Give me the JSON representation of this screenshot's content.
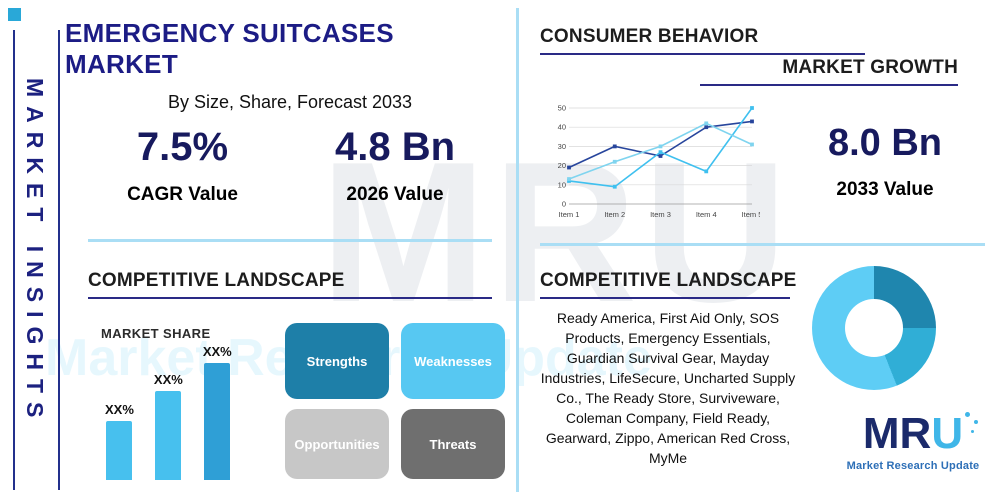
{
  "colors": {
    "navy": "#1c1c85",
    "stat_navy": "#171a5e",
    "teal_accent": "#29a8d8",
    "light_blue": "#57c8f2",
    "divider_blue": "#aadef5",
    "underline_navy": "#2a2a86"
  },
  "left_rail": {
    "vertical_label": "MARKET INSIGHTS"
  },
  "header": {
    "title": "EMERGENCY SUITCASES MARKET",
    "subtitle": "By Size, Share, Forecast 2033"
  },
  "stats": {
    "cagr": {
      "value": "7.5%",
      "label": "CAGR Value"
    },
    "value_2026": {
      "value": "4.8 Bn",
      "label": "2026 Value"
    },
    "value_2033": {
      "value": "8.0 Bn",
      "label": "2033 Value"
    }
  },
  "section_titles": {
    "competitive_left": "COMPETITIVE LANDSCAPE",
    "consumer_behavior": "CONSUMER BEHAVIOR",
    "market_growth": "MARKET GROWTH",
    "competitive_right": "COMPETITIVE LANDSCAPE"
  },
  "swot": {
    "strengths": "Strengths",
    "weaknesses": "Weaknesses",
    "opportunities": "Opportunities",
    "threats": "Threats"
  },
  "companies_text": "Ready America, First Aid Only, SOS Products, Emergency Essentials, Guardian Survival Gear, Mayday Industries, LifeSecure, Uncharted Supply Co., The Ready Store, Surviveware, Coleman Company, Field Ready, Gearward, Zippo, American Red Cross, MyMe",
  "watermark": {
    "big": "MRU",
    "sub": "Market Research Update"
  },
  "logo": {
    "m": "M",
    "r": "R",
    "u": "U",
    "tagline": "Market Research Update"
  },
  "chart_data": [
    {
      "id": "consumer-behavior-line",
      "type": "line",
      "title": "Consumer Behavior trend",
      "x": [
        "Item 1",
        "Item 2",
        "Item 3",
        "Item 4",
        "Item 5"
      ],
      "series": [
        {
          "name": "series-navy",
          "color": "#27459c",
          "values": [
            19,
            30,
            25,
            40,
            43
          ]
        },
        {
          "name": "series-cyan",
          "color": "#3fc0ef",
          "values": [
            12,
            9,
            27,
            17,
            50
          ]
        },
        {
          "name": "series-light",
          "color": "#7fd4ef",
          "values": [
            13,
            22,
            30,
            42,
            31
          ]
        }
      ],
      "ylim": [
        0,
        50
      ],
      "yticks": [
        0,
        10,
        20,
        30,
        40,
        50
      ],
      "grid": true,
      "legend": "none"
    },
    {
      "id": "market-share-bars",
      "type": "bar",
      "title": "MARKET SHARE",
      "categories": [
        "bar-1",
        "bar-2",
        "bar-3"
      ],
      "value_labels": [
        "XX%",
        "XX%",
        "XX%"
      ],
      "values": [
        25,
        38,
        50
      ],
      "bar_colors": [
        "#47c0ee",
        "#47c0ee",
        "#2f9fd6"
      ],
      "ylabel": "",
      "xlabel": ""
    },
    {
      "id": "share-donut",
      "type": "pie",
      "donut": true,
      "slices": [
        {
          "label": "slice-dark",
          "value": 25,
          "color": "#1f86ae"
        },
        {
          "label": "slice-mid",
          "value": 19,
          "color": "#30aed6"
        },
        {
          "label": "slice-light",
          "value": 56,
          "color": "#5ecdf5"
        }
      ]
    }
  ]
}
